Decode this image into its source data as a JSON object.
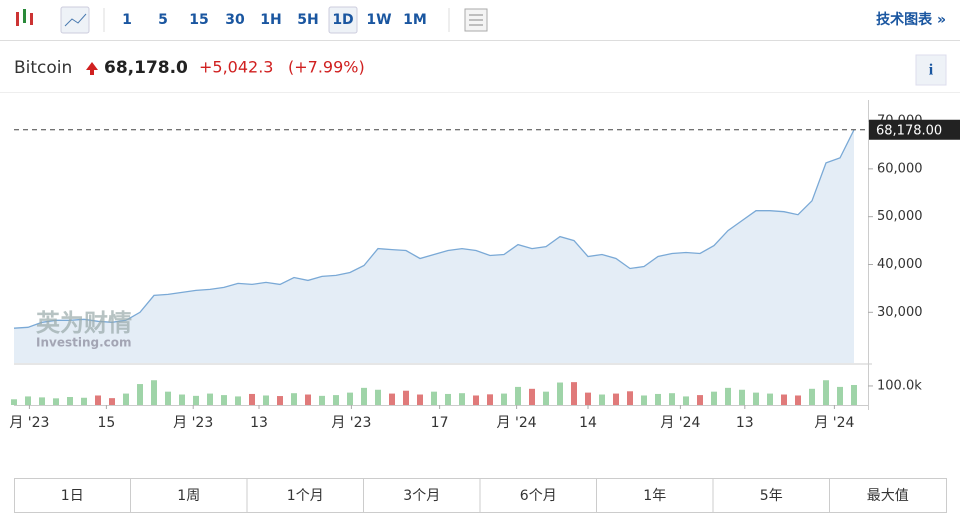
{
  "toolbar": {
    "intervals": [
      "1",
      "5",
      "15",
      "30",
      "1H",
      "5H",
      "1D",
      "1W",
      "1M"
    ],
    "active_interval": "1D",
    "tech_chart": "技术图表 »"
  },
  "header": {
    "name": "Bitcoin",
    "price": "68,178.0",
    "change": "+5,042.3",
    "change_pct": "(+7.99%)",
    "info": "i"
  },
  "watermark": {
    "cn": "英为财情",
    "en": "Investing.com"
  },
  "ranges": [
    "1日",
    "1周",
    "1个月",
    "3个月",
    "6个月",
    "1年",
    "5年",
    "最大值"
  ],
  "chart_data": {
    "type": "line",
    "color": "#7aa9d6",
    "fill": "#e4edf6",
    "values": [
      26670,
      26875,
      27920,
      28330,
      28330,
      28540,
      28125,
      27920,
      28330,
      30000,
      33540,
      33750,
      34170,
      34580,
      34790,
      35210,
      36040,
      35830,
      36250,
      35830,
      37290,
      36670,
      37500,
      37710,
      38330,
      39790,
      43330,
      43120,
      42920,
      41250,
      42080,
      42920,
      43330,
      42920,
      41880,
      42080,
      44170,
      43330,
      43750,
      45830,
      45000,
      41670,
      42080,
      41250,
      39170,
      39580,
      41670,
      42290,
      42500,
      42290,
      43960,
      47080,
      49170,
      51250,
      51250,
      51040,
      50420,
      53330,
      61250,
      62290,
      68178
    ],
    "current_price_label": "68,178.00",
    "ylim": [
      19400,
      74400
    ],
    "yticks": [
      {
        "value": 30000,
        "label": "30,000"
      },
      {
        "value": 40000,
        "label": "40,000"
      },
      {
        "value": 50000,
        "label": "50,000"
      },
      {
        "value": 60000,
        "label": "60,000"
      },
      {
        "value": 70000,
        "label": "70,000"
      }
    ],
    "xlim": [
      0,
      60
    ],
    "xticks": [
      {
        "value": 1.1,
        "label": "月 '23"
      },
      {
        "value": 6.6,
        "label": "15"
      },
      {
        "value": 12.8,
        "label": "月 '23"
      },
      {
        "value": 17.5,
        "label": "13"
      },
      {
        "value": 24.1,
        "label": "月 '23"
      },
      {
        "value": 30.4,
        "label": "17"
      },
      {
        "value": 35.9,
        "label": "月 '24"
      },
      {
        "value": 41,
        "label": "14"
      },
      {
        "value": 47.6,
        "label": "月 '24"
      },
      {
        "value": 52.2,
        "label": "13"
      },
      {
        "value": 58.6,
        "label": "月 '24"
      }
    ],
    "volume": {
      "up_color": "#9fd4a8",
      "down_color": "#e07a7a",
      "ylim": [
        0,
        210000
      ],
      "yticks": [
        {
          "value": 100000,
          "label": "100.0k"
        }
      ],
      "values": [
        30000,
        45000,
        40000,
        35000,
        42000,
        38000,
        50000,
        36000,
        60000,
        110000,
        130000,
        70000,
        55000,
        48000,
        60000,
        52000,
        45000,
        58000,
        50000,
        47000,
        62000,
        55000,
        48000,
        52000,
        65000,
        90000,
        80000,
        60000,
        75000,
        55000,
        70000,
        58000,
        62000,
        50000,
        56000,
        60000,
        95000,
        85000,
        70000,
        118000,
        120000,
        65000,
        55000,
        60000,
        72000,
        50000,
        58000,
        62000,
        45000,
        52000,
        70000,
        90000,
        80000,
        65000,
        60000,
        55000,
        50000,
        85000,
        130000,
        95000,
        105000
      ]
    }
  }
}
